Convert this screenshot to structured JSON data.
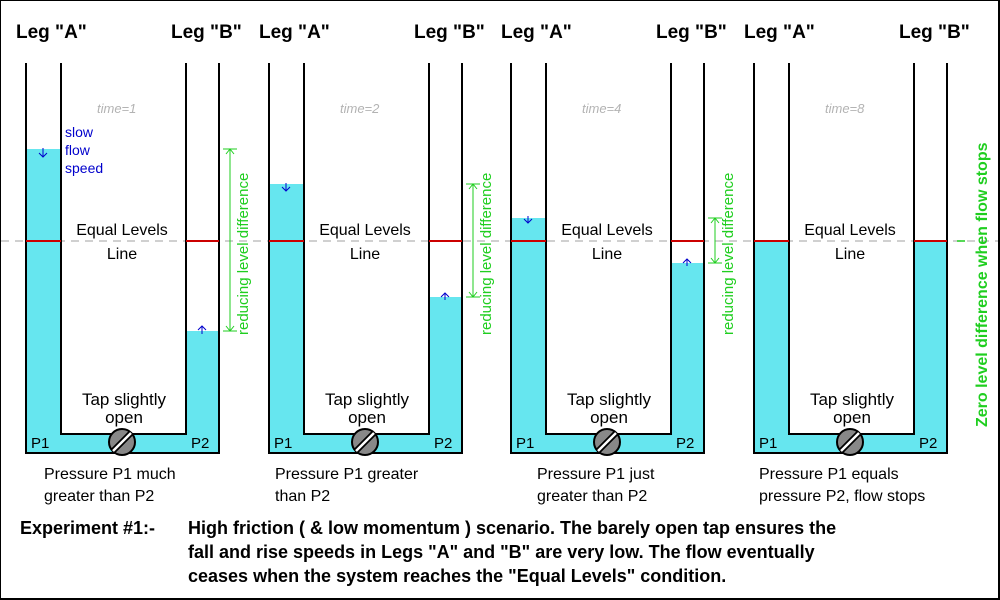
{
  "colors": {
    "water": "#66e6ef",
    "equal_line": "#cc0000",
    "dash": "#b3b3b3",
    "green": "#1fce1f",
    "blue": "#0000cc",
    "tap_fill": "#888888"
  },
  "panels": [
    {
      "leg_a": "Leg \"A\"",
      "leg_b": "Leg \"B\"",
      "time": "time=1",
      "equal_levels": "Equal Levels",
      "line": "Line",
      "tap_1": "Tap slightly",
      "tap_2": "open",
      "p1": "P1",
      "p2": "P2",
      "caption_1": "Pressure P1 much",
      "caption_2": "greater than P2",
      "side_note": "reducing level difference"
    },
    {
      "leg_a": "Leg \"A\"",
      "leg_b": "Leg \"B\"",
      "time": "time=2",
      "equal_levels": "Equal Levels",
      "line": "Line",
      "tap_1": "Tap slightly",
      "tap_2": "open",
      "p1": "P1",
      "p2": "P2",
      "caption_1": "Pressure P1 greater",
      "caption_2": "than P2",
      "side_note": "reducing level difference"
    },
    {
      "leg_a": "Leg \"A\"",
      "leg_b": "Leg \"B\"",
      "time": "time=4",
      "equal_levels": "Equal Levels",
      "line": "Line",
      "tap_1": "Tap slightly",
      "tap_2": "open",
      "p1": "P1",
      "p2": "P2",
      "caption_1": "Pressure P1 just",
      "caption_2": "greater than P2",
      "side_note": "reducing level difference"
    },
    {
      "leg_a": "Leg \"A\"",
      "leg_b": "Leg \"B\"",
      "time": "time=8",
      "equal_levels": "Equal Levels",
      "line": "Line",
      "tap_1": "Tap slightly",
      "tap_2": "open",
      "p1": "P1",
      "p2": "P2",
      "caption_1": "Pressure P1 equals",
      "caption_2": "pressure P2, flow stops",
      "side_note": ""
    }
  ],
  "flow_note": [
    "slow",
    "flow",
    "speed"
  ],
  "zero_note": "Zero level difference when flow stops",
  "experiment": {
    "lead": "Experiment #1:-",
    "line_1": "High friction ( & low momentum ) scenario. The barely open tap ensures the",
    "line_2": "fall and rise speeds in Legs \"A\" and \"B\" are very low. The flow eventually",
    "line_3": "ceases when the system reaches the \"Equal Levels\" condition."
  }
}
